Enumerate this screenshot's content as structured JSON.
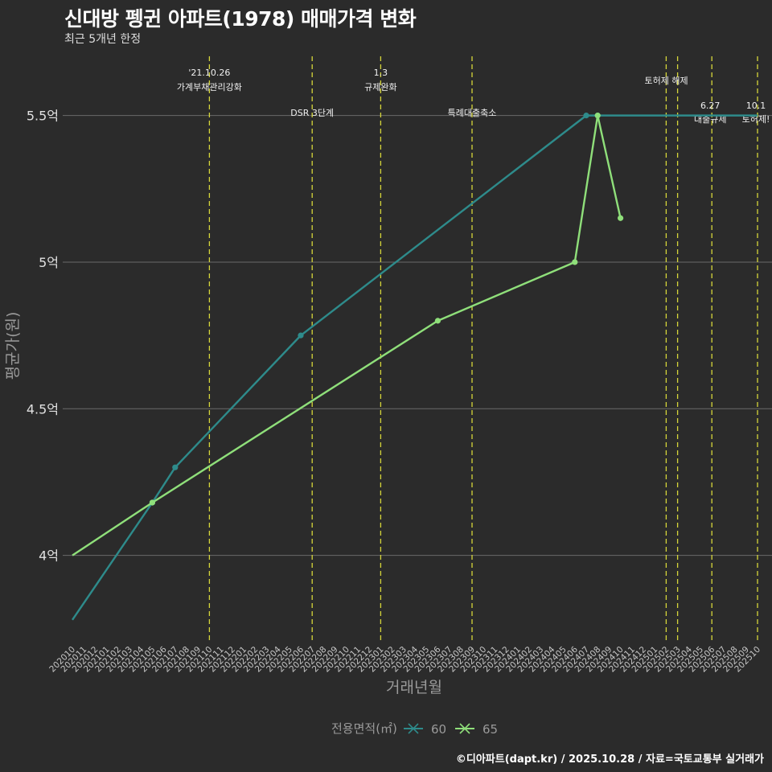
{
  "chart_data": {
    "type": "line",
    "title": "신대방 펭귄 아파트(1978) 매매가격 변화",
    "subtitle": "최근 5개년 한정",
    "xlabel": "거래년월",
    "ylabel": "평균가(원)",
    "caption": "©디아파트(dapt.kr) / 2025.10.28 / 자료=국토교통부 실거래가",
    "legend_title": "전용면적(㎡)",
    "legend_position": "bottom",
    "ylim": [
      3.7,
      5.68
    ],
    "y_ticks": [
      4,
      4.5,
      5,
      5.5
    ],
    "y_tick_labels": [
      "4억",
      "4.5억",
      "5억",
      "5.5억"
    ],
    "categories": [
      "202010",
      "202011",
      "202012",
      "202101",
      "202102",
      "202103",
      "202104",
      "202105",
      "202106",
      "202107",
      "202108",
      "202109",
      "202110",
      "202111",
      "202112",
      "202201",
      "202202",
      "202203",
      "202204",
      "202205",
      "202206",
      "202207",
      "202208",
      "202209",
      "202210",
      "202211",
      "202212",
      "202301",
      "202302",
      "202303",
      "202304",
      "202305",
      "202306",
      "202307",
      "202308",
      "202309",
      "202310",
      "202311",
      "202312",
      "202401",
      "202402",
      "202403",
      "202404",
      "202405",
      "202406",
      "202407",
      "202408",
      "202409",
      "202410",
      "202411",
      "202412",
      "202501",
      "202502",
      "202503",
      "202504",
      "202505",
      "202506",
      "202507",
      "202508",
      "202509",
      "202510"
    ],
    "series": [
      {
        "name": "60",
        "color": "#2e8b8b",
        "points": [
          {
            "x": "202010",
            "y": 3.78
          },
          {
            "x": "202105",
            "y": 4.18
          },
          {
            "x": "202107",
            "y": 4.3
          },
          {
            "x": "202206",
            "y": 4.75
          },
          {
            "x": "202407",
            "y": 5.5
          },
          {
            "x": "202408",
            "y": 5.5
          },
          {
            "x": "202510",
            "y": 5.5
          }
        ],
        "markers": [
          "202105",
          "202107",
          "202206",
          "202407",
          "202408"
        ]
      },
      {
        "name": "65",
        "color": "#8fdf7a",
        "points": [
          {
            "x": "202010",
            "y": 4.0
          },
          {
            "x": "202105",
            "y": 4.18
          },
          {
            "x": "202306",
            "y": 4.8
          },
          {
            "x": "202406",
            "y": 5.0
          },
          {
            "x": "202408",
            "y": 5.5
          },
          {
            "x": "202410",
            "y": 5.15
          }
        ],
        "markers": [
          "202105",
          "202306",
          "202406",
          "202408",
          "202410"
        ]
      }
    ],
    "event_lines": [
      {
        "x": "202110",
        "label1": "'21.10.26",
        "label2": "가계부채관리강화",
        "level": "top"
      },
      {
        "x": "202207",
        "label1": "",
        "label2": "DSR 3단계",
        "level": "mid"
      },
      {
        "x": "202301",
        "label1": "1.3",
        "label2": "규제완화",
        "level": "top"
      },
      {
        "x": "202309",
        "label1": "",
        "label2": "특례대출축소",
        "level": "mid"
      },
      {
        "x": "202502",
        "label1": "",
        "label2": "",
        "level": "top"
      },
      {
        "x": "202503",
        "label1": "",
        "label2": "토허제 해제",
        "level": "topone"
      },
      {
        "x": "202506",
        "label1": "6.27",
        "label2": "대출규제",
        "level": "right"
      },
      {
        "x": "202510",
        "label1": "10.1",
        "label2": "토허제!",
        "level": "right"
      }
    ],
    "grid": true
  }
}
